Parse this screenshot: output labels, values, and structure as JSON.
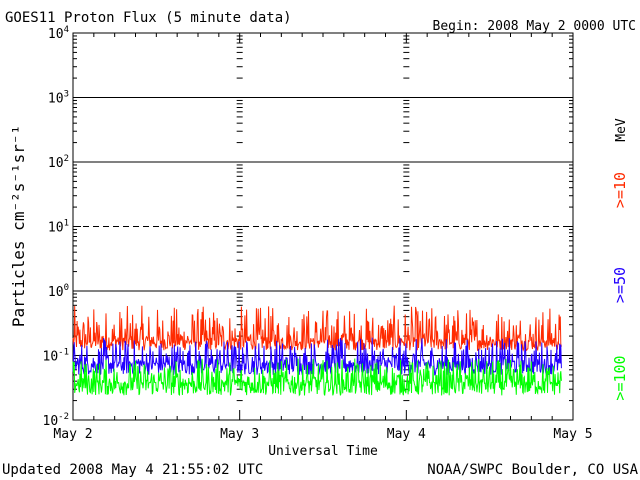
{
  "chart_data": {
    "type": "line",
    "title": "GOES11 Proton Flux (5 minute data)",
    "begin_label": "Begin: 2008 May 2 0000 UTC",
    "xlabel": "Universal Time",
    "ylabel": "Particles cm⁻²s⁻¹sr⁻¹",
    "y_scale": "log",
    "ylim": [
      0.01,
      10000
    ],
    "x_range_days": [
      0,
      3
    ],
    "x_ticks": [
      {
        "value": 0,
        "label": "May 2"
      },
      {
        "value": 1,
        "label": "May 3"
      },
      {
        "value": 2,
        "label": "May 4"
      },
      {
        "value": 3,
        "label": "May 5"
      }
    ],
    "y_ticks": [
      {
        "value": 0.01,
        "base": "10",
        "exp": "-2"
      },
      {
        "value": 0.1,
        "base": "10",
        "exp": "-1"
      },
      {
        "value": 1,
        "base": "10",
        "exp": "0"
      },
      {
        "value": 10,
        "base": "10",
        "exp": "1"
      },
      {
        "value": 100,
        "base": "10",
        "exp": "2"
      },
      {
        "value": 1000,
        "base": "10",
        "exp": "3"
      },
      {
        "value": 10000,
        "base": "10",
        "exp": "4"
      }
    ],
    "threshold_lines": [
      {
        "value": 0.1,
        "style": "solid"
      },
      {
        "value": 1,
        "style": "solid"
      },
      {
        "value": 10,
        "style": "dashed"
      },
      {
        "value": 100,
        "style": "solid"
      },
      {
        "value": 1000,
        "style": "solid"
      }
    ],
    "energy_unit": "MeV",
    "series": [
      {
        "name": ">=10",
        "color": "#ff2a00",
        "x_end": 2.93,
        "baseline": 0.17,
        "min": 0.12,
        "max": 0.6
      },
      {
        "name": ">=50",
        "color": "#2200ff",
        "x_end": 2.93,
        "baseline": 0.075,
        "min": 0.05,
        "max": 0.19
      },
      {
        "name": ">=100",
        "color": "#00ff00",
        "x_end": 2.93,
        "baseline": 0.038,
        "min": 0.024,
        "max": 0.09
      }
    ],
    "grid": false
  },
  "footer": {
    "updated": "Updated 2008 May  4 21:55:02 UTC",
    "source": "NOAA/SWPC Boulder, CO USA"
  }
}
